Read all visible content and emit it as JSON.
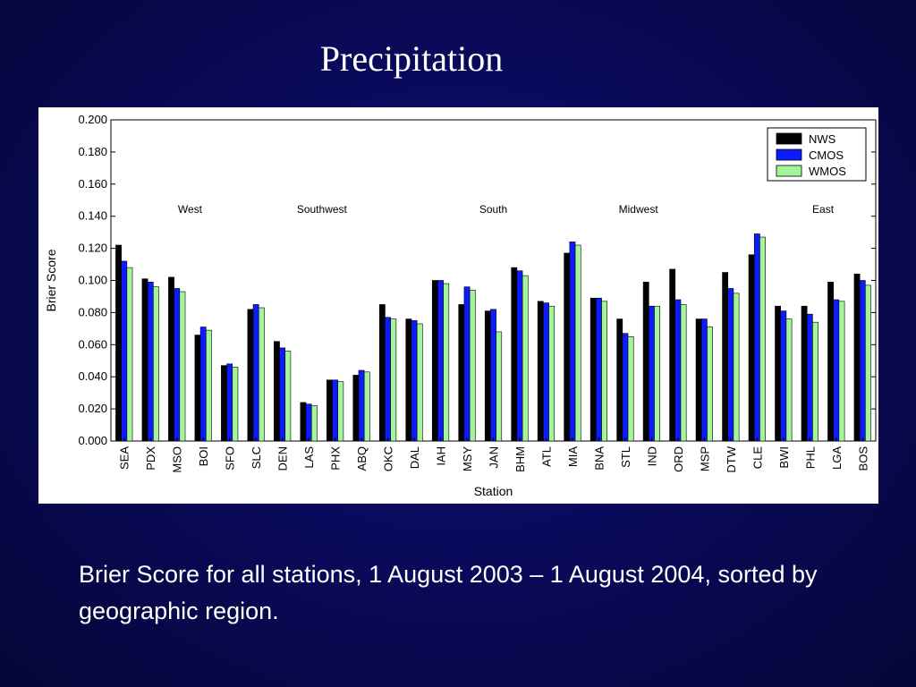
{
  "slide": {
    "title": "Precipitation",
    "caption": "Brier Score for all stations, 1 August 2003 – 1 August 2004, sorted by geographic region."
  },
  "chart_data": {
    "type": "bar",
    "xlabel": "Station",
    "ylabel": "Brier Score",
    "ylim": [
      0,
      0.2
    ],
    "yticks": [
      "0.000",
      "0.020",
      "0.040",
      "0.060",
      "0.080",
      "0.100",
      "0.120",
      "0.140",
      "0.160",
      "0.180",
      "0.200"
    ],
    "categories": [
      "SEA",
      "PDX",
      "MSO",
      "BOI",
      "SFO",
      "SLC",
      "DEN",
      "LAS",
      "PHX",
      "ABQ",
      "OKC",
      "DAL",
      "IAH",
      "MSY",
      "JAN",
      "BHM",
      "ATL",
      "MIA",
      "BNA",
      "STL",
      "IND",
      "ORD",
      "MSP",
      "DTW",
      "CLE",
      "BWI",
      "PHL",
      "LGA",
      "BOS"
    ],
    "series": [
      {
        "name": "NWS",
        "color": "#000000",
        "values": [
          0.122,
          0.101,
          0.102,
          0.066,
          0.047,
          0.082,
          0.062,
          0.024,
          0.038,
          0.041,
          0.085,
          0.076,
          0.1,
          0.085,
          0.081,
          0.108,
          0.087,
          0.117,
          0.089,
          0.076,
          0.099,
          0.107,
          0.076,
          0.105,
          0.116,
          0.084,
          0.084,
          0.099,
          0.104
        ]
      },
      {
        "name": "CMOS",
        "color": "#0b1cff",
        "values": [
          0.112,
          0.099,
          0.095,
          0.071,
          0.048,
          0.085,
          0.058,
          0.023,
          0.038,
          0.044,
          0.077,
          0.075,
          0.1,
          0.096,
          0.082,
          0.106,
          0.086,
          0.124,
          0.089,
          0.067,
          0.084,
          0.088,
          0.076,
          0.095,
          0.129,
          0.081,
          0.079,
          0.088,
          0.1
        ]
      },
      {
        "name": "WMOS",
        "color": "#a4f59a",
        "values": [
          0.108,
          0.096,
          0.093,
          0.069,
          0.046,
          0.083,
          0.056,
          0.022,
          0.037,
          0.043,
          0.076,
          0.073,
          0.098,
          0.094,
          0.068,
          0.103,
          0.084,
          0.122,
          0.087,
          0.065,
          0.084,
          0.085,
          0.071,
          0.092,
          0.127,
          0.076,
          0.074,
          0.087,
          0.097
        ]
      }
    ],
    "regions": [
      {
        "label": "West",
        "center_index": 2.5
      },
      {
        "label": "Southwest",
        "center_index": 7.5
      },
      {
        "label": "South",
        "center_index": 14
      },
      {
        "label": "Midwest",
        "center_index": 19.5
      },
      {
        "label": "East",
        "center_index": 26.5
      }
    ],
    "legend_position": "top-right",
    "grid": false
  }
}
